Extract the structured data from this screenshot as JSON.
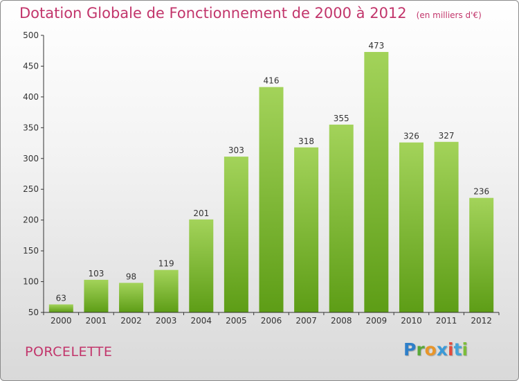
{
  "header": {
    "title": "Dotation Globale de Fonctionnement de 2000 à 2012",
    "unit": "(en milliers d'€)"
  },
  "footer": {
    "commune": "PORCELETTE",
    "logo_letters": [
      "P",
      "r",
      "o",
      "x",
      "i",
      "t",
      "i"
    ],
    "logo_colors": [
      "#2e7fc9",
      "#5aa83a",
      "#e8962a",
      "#3b9ad8",
      "#e34b3b",
      "#45a3d8",
      "#7cbd3a"
    ]
  },
  "colors": {
    "bar_top": "#a3d35a",
    "bar_bottom": "#5d9d16",
    "text": "#c2356b",
    "axis": "#333333"
  },
  "chart_data": {
    "type": "bar",
    "title": "Dotation Globale de Fonctionnement de 2000 à 2012",
    "subtitle": "(en milliers d'€)",
    "categories": [
      "2000",
      "2001",
      "2002",
      "2003",
      "2004",
      "2005",
      "2006",
      "2007",
      "2008",
      "2009",
      "2010",
      "2011",
      "2012"
    ],
    "values": [
      63,
      103,
      98,
      119,
      201,
      303,
      416,
      318,
      355,
      473,
      326,
      327,
      236
    ],
    "ylim": [
      50,
      500
    ],
    "yticks": [
      50,
      100,
      150,
      200,
      250,
      300,
      350,
      400,
      450,
      500
    ],
    "grid": false,
    "data_labels": true
  }
}
